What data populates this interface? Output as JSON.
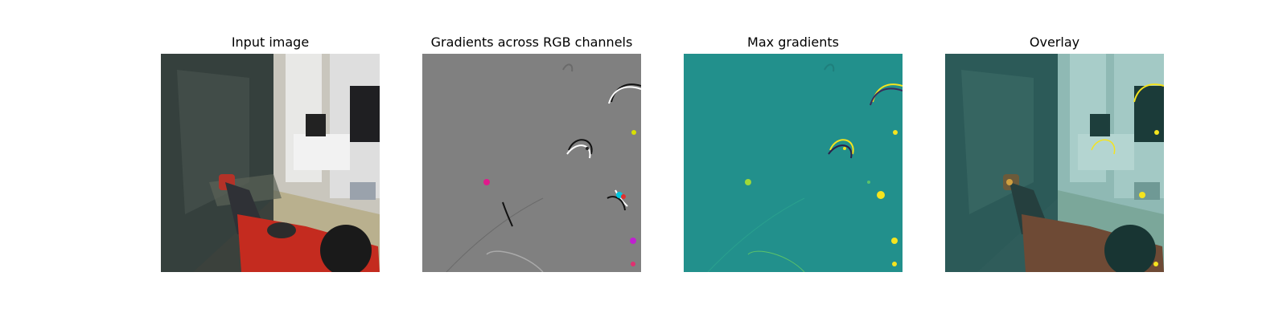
{
  "chart_data": [
    {
      "type": "image",
      "title": "Input image"
    },
    {
      "type": "image",
      "title": "Gradients across RGB channels"
    },
    {
      "type": "image",
      "title": "Max gradients",
      "colors": {
        "background": "#22908c",
        "highlight": "#f5e41e"
      }
    },
    {
      "type": "image",
      "title": "Overlay"
    }
  ]
}
